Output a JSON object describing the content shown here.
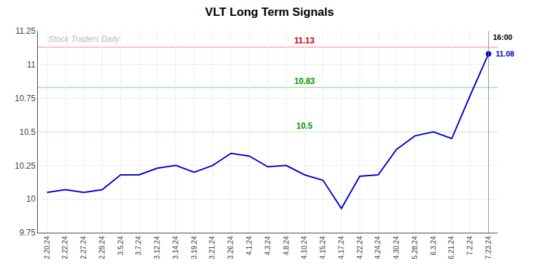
{
  "chart_data": {
    "type": "line",
    "title": "VLT Long Term Signals",
    "categories": [
      "2.20.24",
      "2.22.24",
      "2.27.24",
      "2.29.24",
      "3.5.24",
      "3.7.24",
      "3.12.24",
      "3.14.24",
      "3.19.24",
      "3.21.24",
      "3.26.24",
      "4.1.24",
      "4.3.24",
      "4.8.24",
      "4.10.24",
      "4.15.24",
      "4.17.24",
      "4.22.24",
      "4.24.24",
      "4.30.24",
      "5.28.24",
      "6.3.24",
      "6.21.24",
      "7.2.24",
      "7.23.24"
    ],
    "values": [
      10.05,
      10.07,
      10.05,
      10.07,
      10.18,
      10.18,
      10.23,
      10.25,
      10.2,
      10.25,
      10.34,
      10.32,
      10.24,
      10.25,
      10.18,
      10.14,
      9.93,
      10.17,
      10.18,
      10.37,
      10.47,
      10.5,
      10.45,
      10.77,
      11.08
    ],
    "color": "#0000cc",
    "ylim": [
      9.75,
      11.25
    ],
    "yticks": [
      9.75,
      10,
      10.25,
      10.5,
      10.75,
      11,
      11.25
    ],
    "grid": true,
    "hlines": [
      {
        "y": 11.13,
        "label": "11.13",
        "color": "#ffaaaa",
        "label_color": "#cc0000"
      },
      {
        "y": 10.83,
        "label": "10.83",
        "color": "#aaddaa",
        "label_color": "#009900"
      },
      {
        "y": 10.5,
        "label": "10.5",
        "color": "#aaddaa",
        "label_color": "#009900"
      }
    ],
    "last_time_label": {
      "text": "16:00",
      "color": "#000000"
    },
    "last_value_label": {
      "text": "11.08",
      "color": "#0000cc"
    },
    "watermark": {
      "text": "Stock Traders Daily",
      "color": "#bbbbbb"
    }
  }
}
